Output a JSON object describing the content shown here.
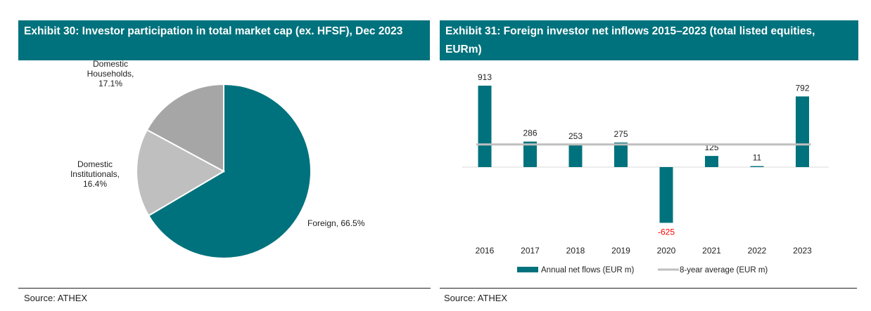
{
  "left": {
    "title": "Exhibit 30: Investor participation in total market cap (ex. HFSF), Dec 2023",
    "source": "Source: ATHEX",
    "chart_data": {
      "type": "pie",
      "slices": [
        {
          "label_lines": [
            "Foreign, 66.5%"
          ],
          "value": 66.5,
          "color": "#00727d"
        },
        {
          "label_lines": [
            "Domestic",
            "Institutionals,",
            "16.4%"
          ],
          "value": 16.4,
          "color": "#bfbfbf"
        },
        {
          "label_lines": [
            "Domestic",
            "Households,",
            "17.1%"
          ],
          "value": 17.1,
          "color": "#a6a6a6"
        }
      ]
    }
  },
  "right": {
    "title": "Exhibit 31: Foreign investor net inflows 2015–2023 (total listed equities, EURm)",
    "source": "Source: ATHEX",
    "chart_data": {
      "type": "bar",
      "categories": [
        "2016",
        "2017",
        "2018",
        "2019",
        "2020",
        "2021",
        "2022",
        "2023"
      ],
      "series": [
        {
          "name": "Annual net flows (EUR m)",
          "values": [
            913,
            286,
            253,
            275,
            -625,
            125,
            11,
            792
          ],
          "color": "#00727d"
        },
        {
          "name": "8-year average (EUR m)",
          "type": "line",
          "values": [
            254,
            254,
            254,
            254,
            254,
            254,
            254,
            254
          ],
          "color": "#bfbfbf"
        }
      ],
      "data_labels": [
        "913",
        "286",
        "253",
        "275",
        "-625",
        "125",
        "11",
        "792"
      ],
      "negative_label_color": "#ff0000",
      "legend_position": "bottom",
      "ylim": [
        -680,
        1000
      ]
    }
  }
}
